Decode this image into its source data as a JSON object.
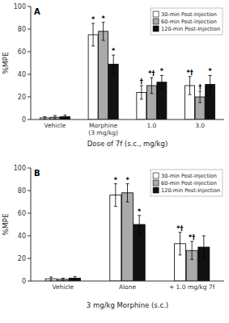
{
  "chart_data": [
    {
      "type": "bar",
      "title": "A",
      "xlabel": "Dose of 7f (s.c., mg/kg)",
      "ylabel": "%MPE",
      "categories": [
        "Vehicle",
        "Morphine\n(3 mg/kg)",
        "1.0",
        "3.0"
      ],
      "series": [
        {
          "name": "30-min Post-Injection",
          "color": "#FFFFFF",
          "values": [
            1.5,
            75.0,
            24.0,
            30.0
          ],
          "errors": [
            1.0,
            10.0,
            6.0,
            8.0
          ]
        },
        {
          "name": "60-min Post-Injection",
          "color": "#AAAAAA",
          "values": [
            2.0,
            78.0,
            30.0,
            20.0
          ],
          "errors": [
            1.5,
            8.0,
            7.0,
            5.0
          ]
        },
        {
          "name": "120-min Post-Injection",
          "color": "#111111",
          "values": [
            2.5,
            49.0,
            33.0,
            31.0
          ],
          "errors": [
            1.5,
            8.0,
            6.0,
            8.0
          ]
        }
      ],
      "ylim": [
        0,
        100
      ],
      "yticks": [
        0,
        20,
        40,
        60,
        80,
        100
      ],
      "grid": false,
      "legend": "upper right",
      "annotations": [
        {
          "text": "*",
          "series": 0,
          "category": 1
        },
        {
          "text": "*",
          "series": 1,
          "category": 1
        },
        {
          "text": "*",
          "series": 2,
          "category": 1
        },
        {
          "text": "†",
          "series": 0,
          "category": 2
        },
        {
          "text": "*†",
          "series": 1,
          "category": 2
        },
        {
          "text": "*",
          "series": 2,
          "category": 2
        },
        {
          "text": "*†",
          "series": 0,
          "category": 3
        },
        {
          "text": "†",
          "series": 1,
          "category": 3
        },
        {
          "text": "*",
          "series": 2,
          "category": 3
        }
      ]
    },
    {
      "type": "bar",
      "title": "B",
      "xlabel": "3 mg/kg Morphine (s.c.)",
      "ylabel": "%MPE",
      "categories": [
        "Vehicle",
        "Alone",
        "+ 1.0 mg/kg 7f"
      ],
      "series": [
        {
          "name": "30-min Post-Injection",
          "color": "#FFFFFF",
          "values": [
            2.0,
            76.0,
            33.0
          ],
          "errors": [
            1.5,
            10.0,
            10.0
          ]
        },
        {
          "name": "60-min Post-Injection",
          "color": "#AAAAAA",
          "values": [
            1.5,
            78.0,
            27.0
          ],
          "errors": [
            1.0,
            8.0,
            8.0
          ]
        },
        {
          "name": "120-min Post-Injection",
          "color": "#111111",
          "values": [
            2.5,
            50.0,
            30.0
          ],
          "errors": [
            1.5,
            8.0,
            10.0
          ]
        }
      ],
      "ylim": [
        0,
        100
      ],
      "yticks": [
        0,
        20,
        40,
        60,
        80,
        100
      ],
      "grid": false,
      "legend": "upper right",
      "annotations": [
        {
          "text": "*",
          "series": 0,
          "category": 1
        },
        {
          "text": "*",
          "series": 1,
          "category": 1
        },
        {
          "text": "*",
          "series": 2,
          "category": 1
        },
        {
          "text": "*†",
          "series": 0,
          "category": 2
        },
        {
          "text": "*†",
          "series": 1,
          "category": 2
        }
      ]
    }
  ]
}
